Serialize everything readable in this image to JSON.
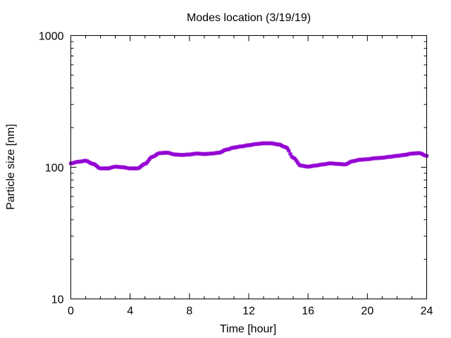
{
  "chart_data": {
    "type": "line",
    "title": "Modes location (3/19/19)",
    "xlabel": "Time [hour]",
    "ylabel": "Particle size [nm]",
    "xlim": [
      0,
      24
    ],
    "ylim": [
      10,
      1000
    ],
    "yscale": "log",
    "grid": false,
    "x_ticks": [
      0,
      4,
      8,
      12,
      16,
      20,
      24
    ],
    "y_ticks": [
      10,
      100,
      1000
    ],
    "x_tick_labels": [
      "0",
      "4",
      "8",
      "12",
      "16",
      "20",
      "24"
    ],
    "y_tick_labels": [
      "10",
      "100",
      "1000"
    ],
    "marker_color": "#9400d3",
    "series": [
      {
        "x": [
          0,
          0.5,
          1.0,
          1.5,
          2.0,
          2.5,
          3.0,
          3.5,
          4.0,
          4.5,
          5.0,
          5.5,
          6.0,
          6.5,
          7.0,
          7.5,
          8.0,
          8.5,
          9.0,
          9.5,
          10.0,
          10.5,
          11.0,
          11.5,
          12.0,
          12.5,
          13.0,
          13.5,
          14.0,
          14.5,
          15.0,
          15.5,
          16.0,
          16.5,
          17.0,
          17.5,
          18.0,
          18.5,
          19.0,
          19.5,
          20.0,
          20.5,
          21.0,
          21.5,
          22.0,
          22.5,
          23.0,
          23.5,
          24.0
        ],
        "values": [
          107,
          110,
          112,
          106,
          98,
          98,
          101,
          100,
          98,
          98,
          106,
          120,
          128,
          129,
          125,
          124,
          125,
          127,
          126,
          127,
          129,
          136,
          141,
          144,
          147,
          150,
          152,
          152,
          149,
          142,
          118,
          103,
          101,
          103,
          105,
          107,
          106,
          105,
          111,
          114,
          115,
          117,
          118,
          120,
          122,
          124,
          127,
          128,
          122
        ]
      }
    ]
  }
}
